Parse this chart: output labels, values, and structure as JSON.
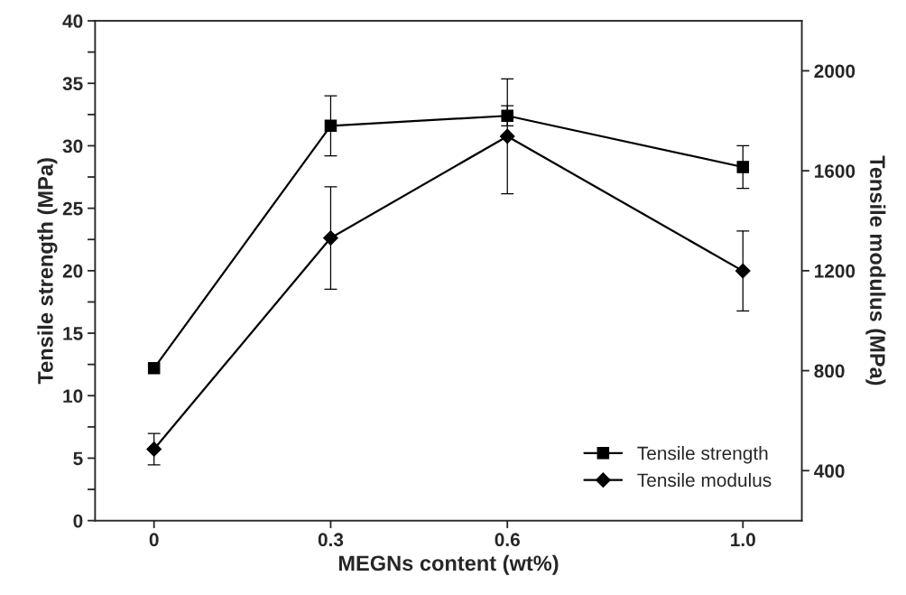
{
  "chart_data": {
    "type": "line",
    "xlabel": "MEGNs content (wt%)",
    "ylabel": "Tensile strength (MPa)",
    "y2label": "Tensile modulus (MPa)",
    "x": [
      0,
      0.3,
      0.6,
      1.0
    ],
    "series": [
      {
        "name": "Tensile strength",
        "color": "#000000",
        "marker": "square",
        "values": [
          12.2,
          31.6,
          32.4,
          28.3
        ],
        "errors": [
          null,
          2.4,
          0.8,
          1.7
        ]
      },
      {
        "name": "Tensile modulus",
        "color": "#000000",
        "marker": "diamond",
        "axis": "y2",
        "values": [
          486,
          1331,
          1738,
          1199
        ],
        "errors": [
          63,
          205,
          230,
          160
        ]
      }
    ],
    "xlim": [
      -0.1,
      1.1
    ],
    "xticks": [
      0,
      0.3,
      0.6,
      {
        "value": 1.0,
        "label": "1.0"
      }
    ],
    "ylim": [
      0,
      40
    ],
    "yticks": [
      0,
      {
        "value": 2.5,
        "label": null
      },
      5,
      {
        "value": 7.5,
        "label": null
      },
      10,
      {
        "value": 12.5,
        "label": null
      },
      15,
      {
        "value": 17.5,
        "label": null
      },
      20,
      {
        "value": 22.5,
        "label": null
      },
      25,
      {
        "value": 27.5,
        "label": null
      },
      30,
      {
        "value": 32.5,
        "label": null
      },
      35,
      {
        "value": 37.5,
        "label": null
      },
      40
    ],
    "y2lim": [
      200,
      2200
    ],
    "y2ticks": [
      400,
      800,
      1200,
      1600,
      2000
    ],
    "legend": "bottom right",
    "grid": false,
    "line_style": "solid"
  }
}
